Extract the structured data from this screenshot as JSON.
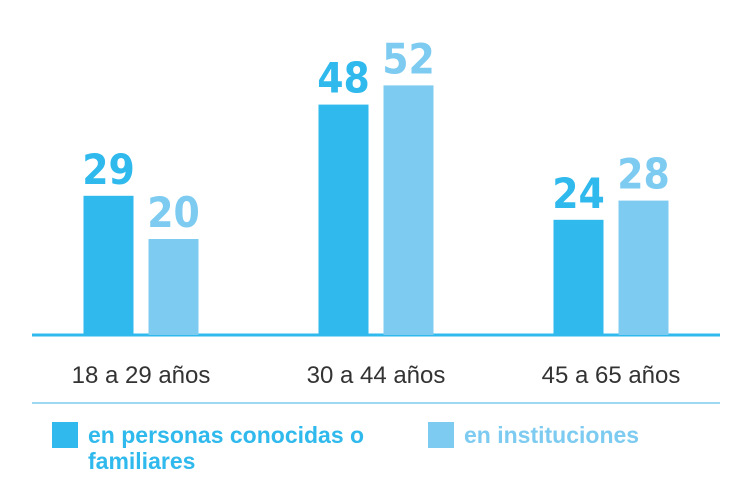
{
  "chart_data": {
    "type": "bar",
    "categories": [
      "18 a 29 años",
      "30 a 44 años",
      "45 a 65 años"
    ],
    "series": [
      {
        "name": "en personas conocidas o familiares",
        "color": "#2fb9ec",
        "values": [
          29,
          48,
          24
        ]
      },
      {
        "name": "en instituciones",
        "color": "#7dcbf1",
        "values": [
          20,
          52,
          28
        ]
      }
    ]
  }
}
